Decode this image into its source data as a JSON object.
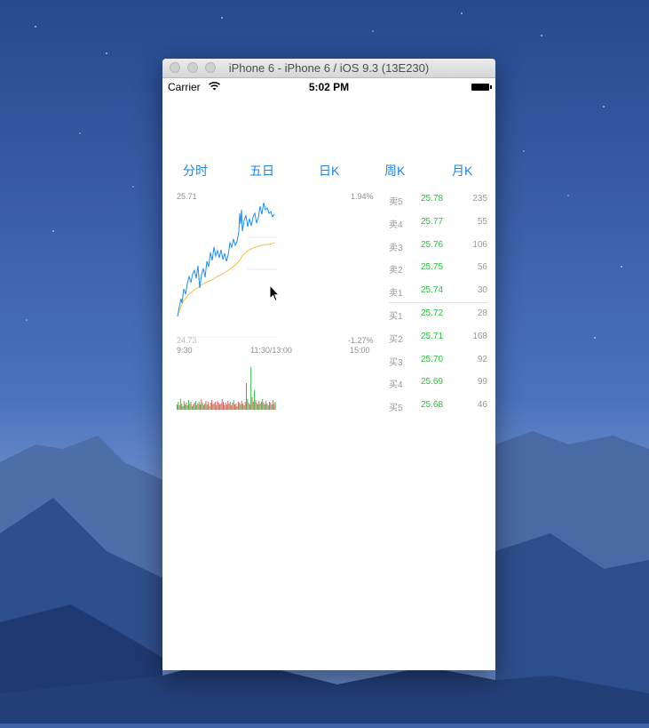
{
  "simulator": {
    "title": "iPhone 6 - iPhone 6 / iOS 9.3 (13E230)"
  },
  "status_bar": {
    "carrier": "Carrier",
    "time": "5:02 PM"
  },
  "tabs": [
    {
      "label": "分时"
    },
    {
      "label": "五日"
    },
    {
      "label": "日K"
    },
    {
      "label": "周K"
    },
    {
      "label": "月K"
    }
  ],
  "timeshare": {
    "price_high": "25.71",
    "price_low": "24.73",
    "pct_high": "1.94%",
    "pct_low": "-1.27%",
    "time_start": "9:30",
    "time_mid": "11:30/13:00",
    "time_end": "15:00"
  },
  "order_book": {
    "asks": [
      {
        "side": "卖5",
        "price": "25.78",
        "volume": "235"
      },
      {
        "side": "卖4",
        "price": "25.77",
        "volume": "55"
      },
      {
        "side": "卖3",
        "price": "25.76",
        "volume": "106"
      },
      {
        "side": "卖2",
        "price": "25.75",
        "volume": "56"
      },
      {
        "side": "卖1",
        "price": "25.74",
        "volume": "30"
      }
    ],
    "bids": [
      {
        "side": "买1",
        "price": "25.72",
        "volume": "28"
      },
      {
        "side": "买2",
        "price": "25.71",
        "volume": "168"
      },
      {
        "side": "买3",
        "price": "25.70",
        "volume": "92"
      },
      {
        "side": "买4",
        "price": "25.69",
        "volume": "99"
      },
      {
        "side": "买5",
        "price": "25.68",
        "volume": "46"
      }
    ]
  },
  "colors": {
    "tab_accent": "#1c84e6",
    "price_line": "#1c8ff0",
    "avg_line": "#f0c14b",
    "up": "#e06464",
    "down": "#2dbf43"
  }
}
